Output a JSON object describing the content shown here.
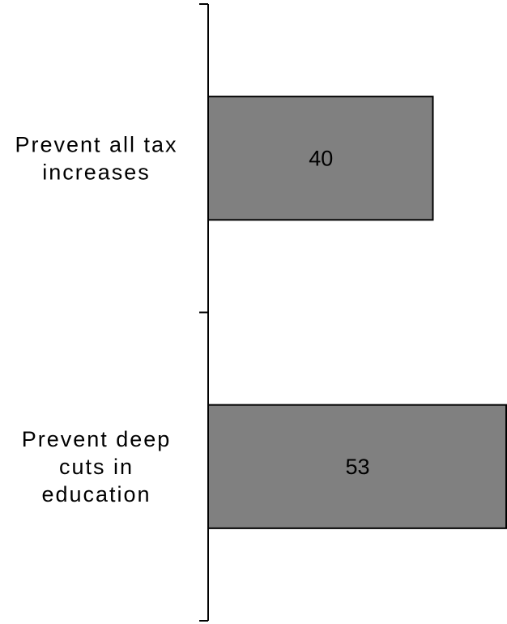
{
  "chart_data": {
    "type": "bar",
    "orientation": "horizontal",
    "title": "",
    "xlabel": "",
    "ylabel": "",
    "categories": [
      [
        "Prevent all tax",
        "increases"
      ],
      [
        "Prevent deep",
        "cuts in",
        "education"
      ]
    ],
    "values": [
      40,
      53
    ],
    "data_labels": [
      "40",
      "53"
    ],
    "xlim": [
      0,
      53
    ],
    "grid": false,
    "legend": "none",
    "bar_color": "#808080",
    "bar_edge_color": "#000000",
    "axis_color": "#000000"
  }
}
